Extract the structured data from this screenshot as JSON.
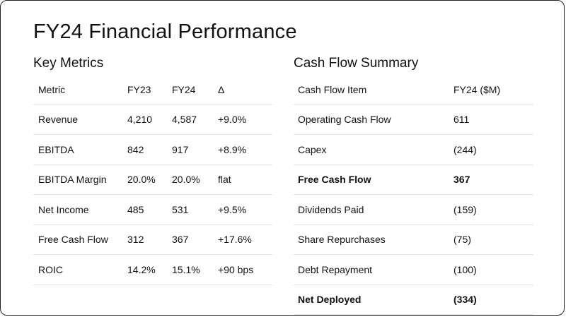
{
  "slide": {
    "title": "FY24 Financial Performance"
  },
  "key_metrics": {
    "title": "Key Metrics",
    "headers": [
      "Metric",
      "FY23",
      "FY24",
      "Δ"
    ],
    "rows": [
      [
        "Revenue",
        "4,210",
        "4,587",
        "+9.0%"
      ],
      [
        "EBITDA",
        "842",
        "917",
        "+8.9%"
      ],
      [
        "EBITDA Margin",
        "20.0%",
        "20.0%",
        "flat"
      ],
      [
        "Net Income",
        "485",
        "531",
        "+9.5%"
      ],
      [
        "Free Cash Flow",
        "312",
        "367",
        "+17.6%"
      ],
      [
        "ROIC",
        "14.2%",
        "15.1%",
        "+90 bps"
      ]
    ]
  },
  "cash_flow": {
    "title": "Cash Flow Summary",
    "headers": [
      "Cash Flow Item",
      "FY24 ($M)"
    ],
    "rows": [
      [
        "Operating Cash Flow",
        "611"
      ],
      [
        "Capex",
        "(244)"
      ],
      [
        "Free Cash Flow",
        "367"
      ],
      [
        "Dividends Paid",
        "(159)"
      ],
      [
        "Share Repurchases",
        "(75)"
      ],
      [
        "Debt Repayment",
        "(100)"
      ],
      [
        "Net Deployed",
        "(334)"
      ]
    ],
    "bold_rows": [
      2,
      6
    ]
  }
}
